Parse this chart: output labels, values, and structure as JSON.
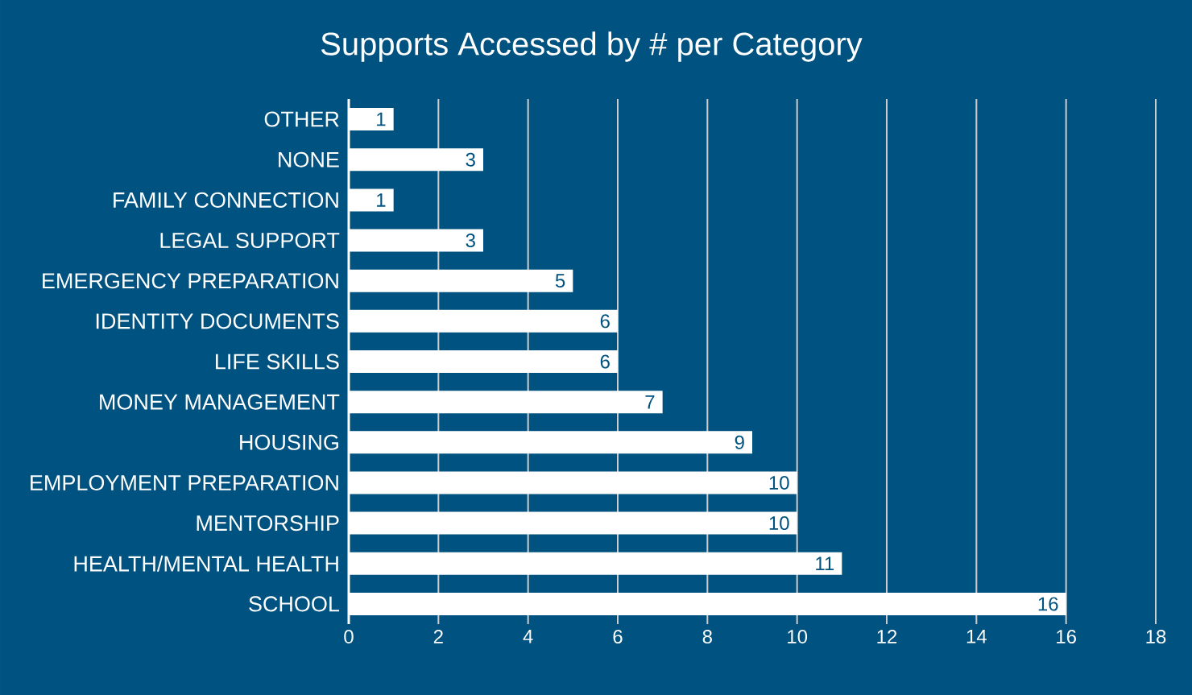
{
  "chart_data": {
    "type": "bar",
    "orientation": "horizontal",
    "title": "Supports Accessed by # per Category",
    "categories": [
      "OTHER",
      "NONE",
      "FAMILY CONNECTION",
      "LEGAL SUPPORT",
      "EMERGENCY PREPARATION",
      "IDENTITY DOCUMENTS",
      "LIFE SKILLS",
      "MONEY MANAGEMENT",
      "HOUSING",
      "EMPLOYMENT PREPARATION",
      "MENTORSHIP",
      "HEALTH/MENTAL HEALTH",
      "SCHOOL"
    ],
    "values": [
      1,
      3,
      1,
      3,
      5,
      6,
      6,
      7,
      9,
      10,
      10,
      11,
      16
    ],
    "color": "#ffffff",
    "xlim": [
      0,
      18
    ],
    "xticks": [
      0,
      2,
      4,
      6,
      8,
      10,
      12,
      14,
      16,
      18
    ],
    "grid": "x",
    "data_labels": true
  }
}
